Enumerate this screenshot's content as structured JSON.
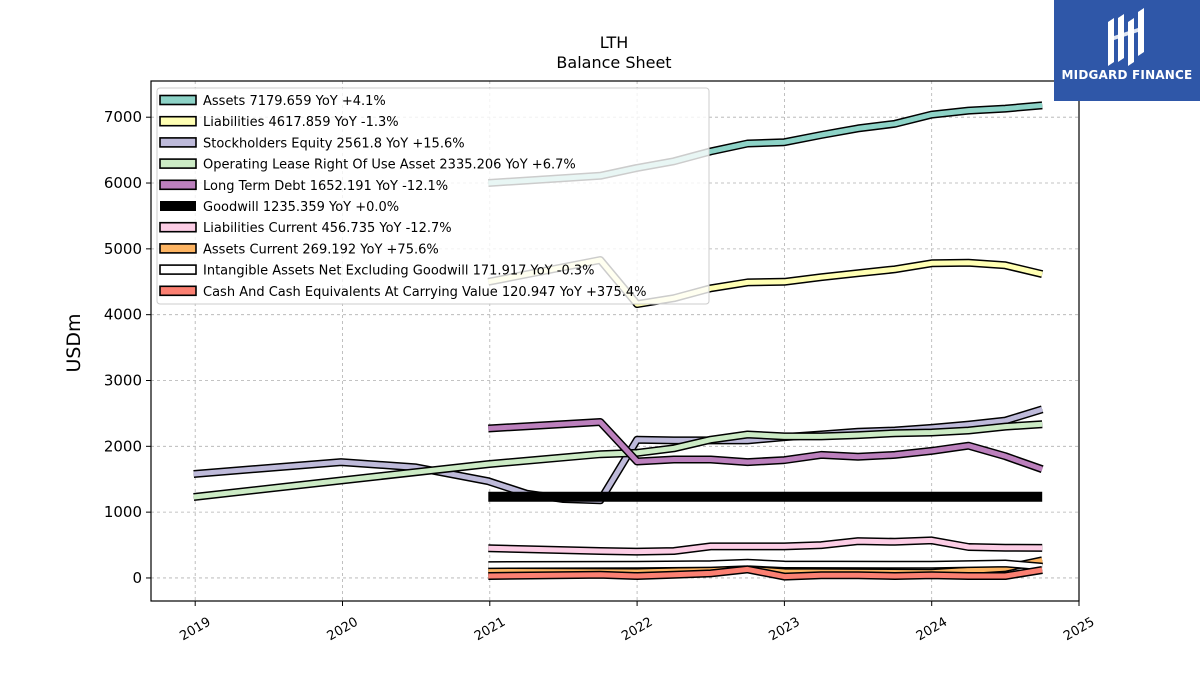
{
  "header": {
    "ticker": "LTH",
    "subtitle": "Balance  Sheet"
  },
  "brand": {
    "name": "MIDGARD FINANCE",
    "logo_icon": "midgard-logo-icon",
    "color": "#2f57a8"
  },
  "chart_data": {
    "type": "line",
    "title": "LTH",
    "subtitle": "Balance  Sheet",
    "ylabel": "USDm",
    "xlim": [
      2018.7,
      2025.0
    ],
    "ylim": [
      -350,
      7550
    ],
    "x_ticks": [
      "2019",
      "2020",
      "2021",
      "2022",
      "2023",
      "2024",
      "2025"
    ],
    "y_ticks": [
      "0",
      "1000",
      "2000",
      "3000",
      "4000",
      "5000",
      "6000",
      "7000"
    ],
    "grid": true,
    "legend_position": "upper-left",
    "series": [
      {
        "name": "Assets",
        "legend": "Assets  7179.659 YoY +4.1%",
        "color": "#8dd3c7",
        "x": [
          2020.99,
          2021.75,
          2022.0,
          2022.25,
          2022.5,
          2022.75,
          2023.0,
          2023.25,
          2023.5,
          2023.75,
          2024.0,
          2024.25,
          2024.5,
          2024.75
        ],
        "y": [
          6000,
          6110,
          6230,
          6330,
          6480,
          6600,
          6620,
          6730,
          6830,
          6900,
          7040,
          7100,
          7130,
          7180
        ]
      },
      {
        "name": "Liabilities",
        "legend": "Liabilities  4617.859 YoY -1.3%",
        "color": "#ffffb3",
        "x": [
          2020.99,
          2021.75,
          2022.0,
          2022.25,
          2022.5,
          2022.75,
          2023.0,
          2023.25,
          2023.5,
          2023.75,
          2024.0,
          2024.25,
          2024.5,
          2024.75
        ],
        "y": [
          4500,
          4830,
          4160,
          4250,
          4400,
          4490,
          4500,
          4570,
          4630,
          4690,
          4780,
          4790,
          4750,
          4617
        ]
      },
      {
        "name": "Stockholders Equity",
        "legend": "Stockholders Equity  2561.8 YoY +15.6%",
        "color": "#bebada",
        "x": [
          2018.99,
          2019.99,
          2020.5,
          2020.99,
          2021.25,
          2021.5,
          2021.75,
          2022.0,
          2022.25,
          2022.5,
          2022.75,
          2023.0,
          2023.25,
          2023.5,
          2023.75,
          2024.0,
          2024.25,
          2024.5,
          2024.75
        ],
        "y": [
          1580,
          1760,
          1680,
          1470,
          1280,
          1200,
          1180,
          2100,
          2090,
          2090,
          2090,
          2140,
          2180,
          2220,
          2240,
          2280,
          2330,
          2390,
          2562
        ]
      },
      {
        "name": "Operating Lease Right Of Use Asset",
        "legend": "Operating Lease Right Of Use Asset  2335.206 YoY +6.7%",
        "color": "#ccebc5",
        "x": [
          2018.99,
          2019.99,
          2020.99,
          2021.75,
          2022.0,
          2022.25,
          2022.5,
          2022.75,
          2023.0,
          2023.25,
          2023.5,
          2023.75,
          2024.0,
          2024.25,
          2024.5,
          2024.75
        ],
        "y": [
          1230,
          1480,
          1730,
          1880,
          1900,
          1970,
          2100,
          2180,
          2150,
          2150,
          2170,
          2200,
          2210,
          2240,
          2300,
          2335
        ]
      },
      {
        "name": "Long Term Debt",
        "legend": "Long Term Debt  1652.191 YoY -12.1%",
        "color": "#bc80bd",
        "x": [
          2020.99,
          2021.75,
          2022.0,
          2022.25,
          2022.5,
          2022.75,
          2023.0,
          2023.25,
          2023.5,
          2023.75,
          2024.0,
          2024.25,
          2024.5,
          2024.75
        ],
        "y": [
          2270,
          2370,
          1770,
          1800,
          1800,
          1760,
          1790,
          1870,
          1840,
          1870,
          1930,
          2010,
          1850,
          1652
        ]
      },
      {
        "name": "Goodwill",
        "legend": "Goodwill  1235.359 YoY +0.0%",
        "color": "#000000",
        "x": [
          2020.99,
          2024.75
        ],
        "y": [
          1235,
          1235
        ]
      },
      {
        "name": "Liabilities Current",
        "legend": "Liabilities Current  456.735 YoY -12.7%",
        "color": "#fccde5",
        "x": [
          2020.99,
          2021.75,
          2022.0,
          2022.25,
          2022.5,
          2022.75,
          2023.0,
          2023.25,
          2023.5,
          2023.75,
          2024.0,
          2024.25,
          2024.5,
          2024.75
        ],
        "y": [
          450,
          410,
          400,
          410,
          480,
          480,
          480,
          500,
          560,
          550,
          570,
          470,
          460,
          457
        ]
      },
      {
        "name": "Assets Current",
        "legend": "Assets Current  269.192 YoY +75.6%",
        "color": "#fdb462",
        "x": [
          2020.99,
          2022.0,
          2022.75,
          2023.0,
          2024.0,
          2024.5,
          2024.75
        ],
        "y": [
          100,
          90,
          130,
          90,
          80,
          150,
          269
        ]
      },
      {
        "name": "Intangible Assets Net Excluding Goodwill",
        "legend": "Intangible Assets Net Excluding Goodwill  171.917 YoY -0.3%",
        "color": "#ffffff",
        "x": [
          2020.99,
          2022.0,
          2022.5,
          2022.75,
          2023.0,
          2024.0,
          2024.5,
          2024.75
        ],
        "y": [
          195,
          200,
          210,
          230,
          205,
          200,
          220,
          172
        ]
      },
      {
        "name": "Cash And Cash Equivalents At Carrying Value",
        "legend": "Cash And Cash Equivalents At Carrying Value  120.947 YoY +375.4%",
        "color": "#fb8072",
        "x": [
          2020.99,
          2021.75,
          2022.0,
          2022.25,
          2022.5,
          2022.75,
          2023.0,
          2023.25,
          2023.5,
          2023.75,
          2024.0,
          2024.25,
          2024.5,
          2024.75
        ],
        "y": [
          30,
          50,
          30,
          50,
          70,
          130,
          20,
          40,
          40,
          30,
          40,
          30,
          30,
          121
        ]
      }
    ]
  }
}
